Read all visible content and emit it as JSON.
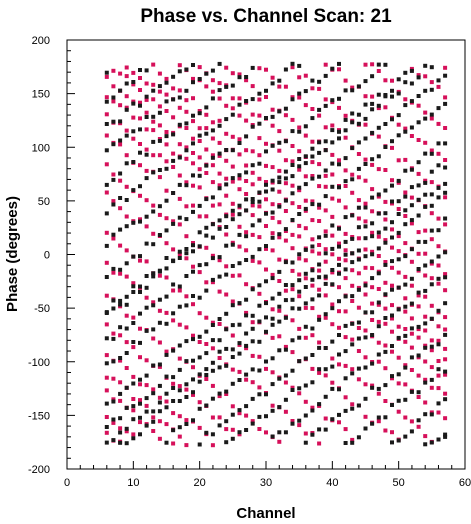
{
  "chart_data": {
    "type": "scatter",
    "title": "Phase vs. Channel Scan: 21",
    "xlabel": "Channel",
    "ylabel": "Phase (degrees)",
    "xlim": [
      0,
      60
    ],
    "ylim": [
      -200,
      200
    ],
    "x_ticks": [
      "0",
      "10",
      "20",
      "30",
      "40",
      "50",
      "60"
    ],
    "y_ticks": [
      "-200",
      "-150",
      "-100",
      "-50",
      "0",
      "50",
      "100",
      "150",
      "200"
    ],
    "grid": false,
    "legend": "none",
    "series": [
      {
        "color": "#d6105a",
        "channel_range": [
          6,
          57
        ],
        "phase_range": [
          -178,
          178
        ],
        "tracks": [
          {
            "phase_at_ch6": 178,
            "slope_deg_per_ch": -5.2
          },
          {
            "phase_at_ch6": 164,
            "slope_deg_per_ch": -5.2
          },
          {
            "phase_at_ch6": 150,
            "slope_deg_per_ch": -5.2
          },
          {
            "phase_at_ch6": 132,
            "slope_deg_per_ch": -5.2
          },
          {
            "phase_at_ch6": 110,
            "slope_deg_per_ch": -5.2
          },
          {
            "phase_at_ch6": 82,
            "slope_deg_per_ch": -5.2
          },
          {
            "phase_at_ch6": 55,
            "slope_deg_per_ch": -5.2
          },
          {
            "phase_at_ch6": 22,
            "slope_deg_per_ch": -5.2
          },
          {
            "phase_at_ch6": -8,
            "slope_deg_per_ch": -5.2
          },
          {
            "phase_at_ch6": -40,
            "slope_deg_per_ch": -5.2
          },
          {
            "phase_at_ch6": -66,
            "slope_deg_per_ch": -5.2
          },
          {
            "phase_at_ch6": -92,
            "slope_deg_per_ch": -5.2
          },
          {
            "phase_at_ch6": -112,
            "slope_deg_per_ch": -5.2
          },
          {
            "phase_at_ch6": -128,
            "slope_deg_per_ch": -5.2
          },
          {
            "phase_at_ch6": -150,
            "slope_deg_per_ch": -5.2
          },
          {
            "phase_at_ch6": -166,
            "slope_deg_per_ch": -5.2
          }
        ]
      },
      {
        "color": "#1a1a1a",
        "channel_range": [
          6,
          57
        ],
        "phase_range": [
          -178,
          178
        ],
        "tracks": [
          {
            "phase_at_ch6": 172,
            "slope_deg_per_ch": 4.8
          },
          {
            "phase_at_ch6": 145,
            "slope_deg_per_ch": 4.8
          },
          {
            "phase_at_ch6": 118,
            "slope_deg_per_ch": 4.8
          },
          {
            "phase_at_ch6": 96,
            "slope_deg_per_ch": 4.8
          },
          {
            "phase_at_ch6": 68,
            "slope_deg_per_ch": 4.8
          },
          {
            "phase_at_ch6": 40,
            "slope_deg_per_ch": 4.8
          },
          {
            "phase_at_ch6": 10,
            "slope_deg_per_ch": 4.8
          },
          {
            "phase_at_ch6": -22,
            "slope_deg_per_ch": 4.8
          },
          {
            "phase_at_ch6": -50,
            "slope_deg_per_ch": 4.8
          },
          {
            "phase_at_ch6": -58,
            "slope_deg_per_ch": 4.8
          },
          {
            "phase_at_ch6": -80,
            "slope_deg_per_ch": 4.8
          },
          {
            "phase_at_ch6": -104,
            "slope_deg_per_ch": 4.8
          },
          {
            "phase_at_ch6": -140,
            "slope_deg_per_ch": 4.8
          },
          {
            "phase_at_ch6": -160,
            "slope_deg_per_ch": 4.8
          },
          {
            "phase_at_ch6": -176,
            "slope_deg_per_ch": 4.8
          }
        ]
      }
    ]
  }
}
